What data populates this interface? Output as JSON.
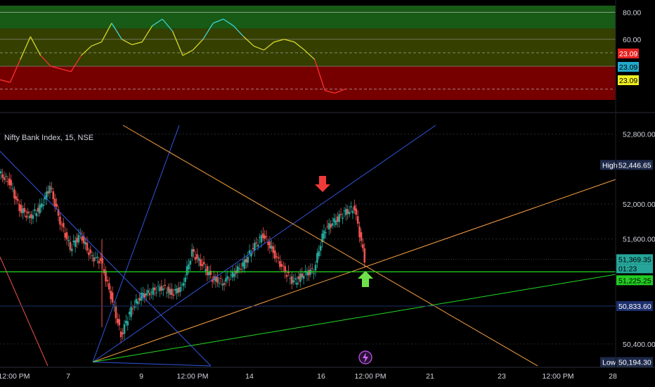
{
  "header": {
    "title": "Nifty Bank Index, 15, NSE"
  },
  "colors": {
    "background": "#000000",
    "up": "#26a69a",
    "down": "#ef5350",
    "rsi_overbought_zone": "#1b6b1b",
    "rsi_mid_zone": "#3d4a00",
    "rsi_oversold_zone": "#8b0000",
    "fan_orange": "#f7a042",
    "fan_blue": "#3355dd",
    "support_line": "#22dd22",
    "sell_arrow": "#ef3a3a",
    "buy_arrow": "#6ee14a",
    "price_label": "#26a69a",
    "countdown_label": "#26a69a",
    "level_label": "#22cc22",
    "low_high_label": "#1e2a4a",
    "level_50833": "#1c2f6e"
  },
  "icons": {
    "lightning": "lightning-icon",
    "sell": "down-arrow-icon",
    "buy": "up-arrow-icon"
  },
  "chart_data": [
    {
      "type": "line",
      "name": "rsi-panel",
      "ylim": [
        15,
        85
      ],
      "y_ticks": [
        "80.00",
        "60.00"
      ],
      "zones": [
        {
          "from": 68,
          "to": 85,
          "color": "#1b6b1b"
        },
        {
          "from": 40,
          "to": 68,
          "color": "#3d4a00"
        },
        {
          "from": 15,
          "to": 40,
          "color": "#8b0000"
        }
      ],
      "reference_lines": [
        80,
        60,
        50,
        40,
        23
      ],
      "value_labels": [
        {
          "text": "23.09",
          "bg": "#e62020",
          "fg": "#ffffff"
        },
        {
          "text": "23.09",
          "bg": "#22aacc",
          "fg": "#000000"
        },
        {
          "text": "23.09",
          "bg": "#eeee22",
          "fg": "#000000"
        }
      ],
      "x": [
        0,
        0.5,
        1,
        1.5,
        2,
        2.5,
        3,
        3.5,
        4,
        4.5,
        5,
        5.5,
        6,
        6.5,
        7,
        7.5,
        8,
        8.5,
        9,
        9.5,
        10,
        10.5,
        11,
        11.5,
        12,
        12.5,
        13,
        13.5,
        14,
        14.5,
        15,
        15.5,
        16,
        16.5,
        17,
        17.5,
        18
      ],
      "values": [
        30,
        28,
        45,
        62,
        48,
        40,
        38,
        36,
        48,
        55,
        58,
        72,
        60,
        56,
        58,
        70,
        75,
        66,
        48,
        52,
        60,
        72,
        75,
        70,
        62,
        55,
        52,
        58,
        60,
        58,
        52,
        45,
        22,
        20,
        23.09,
        23.09,
        23.09
      ]
    },
    {
      "type": "line",
      "name": "price-panel",
      "ylim": [
        50150,
        52900
      ],
      "y_ticks": [
        "52,800.00",
        "52,000.00",
        "51,600.00",
        "50,400.00"
      ],
      "x_ticks": [
        "12:00 PM",
        "7",
        "9",
        "12:00 PM",
        "14",
        "16",
        "12:00 PM",
        "21",
        "23",
        "12:00 PM",
        "28"
      ],
      "x": [
        0,
        0.5,
        1,
        1.5,
        2,
        2.5,
        3,
        3.5,
        4,
        4.5,
        5,
        5.5,
        6,
        6.5,
        7,
        7.5,
        8,
        8.5,
        9,
        9.5,
        10,
        10.5,
        11,
        11.5,
        12,
        12.5,
        13,
        13.5,
        14,
        14.5,
        15,
        15.5,
        16,
        16.5,
        17,
        17.5,
        18
      ],
      "values": [
        52350,
        52250,
        51950,
        51850,
        51950,
        52200,
        51800,
        51500,
        51650,
        51400,
        51350,
        50950,
        50500,
        50800,
        50950,
        51000,
        51050,
        50980,
        51050,
        51450,
        51300,
        51150,
        51100,
        51200,
        51300,
        51500,
        51650,
        51450,
        51250,
        51100,
        51200,
        51250,
        51700,
        51800,
        51900,
        51950,
        51369.35
      ],
      "levels": [
        {
          "price": 52446.65,
          "label": "52,446.65",
          "tag": "High"
        },
        {
          "price": 51369.35,
          "label": "51,369.35",
          "tag": "01:23"
        },
        {
          "price": 51225.25,
          "label": "51,225.25",
          "tag": ""
        },
        {
          "price": 50833.6,
          "label": "50,833.60",
          "tag": ""
        },
        {
          "price": 50194.3,
          "label": "50,194.30",
          "tag": "Low"
        }
      ]
    }
  ]
}
